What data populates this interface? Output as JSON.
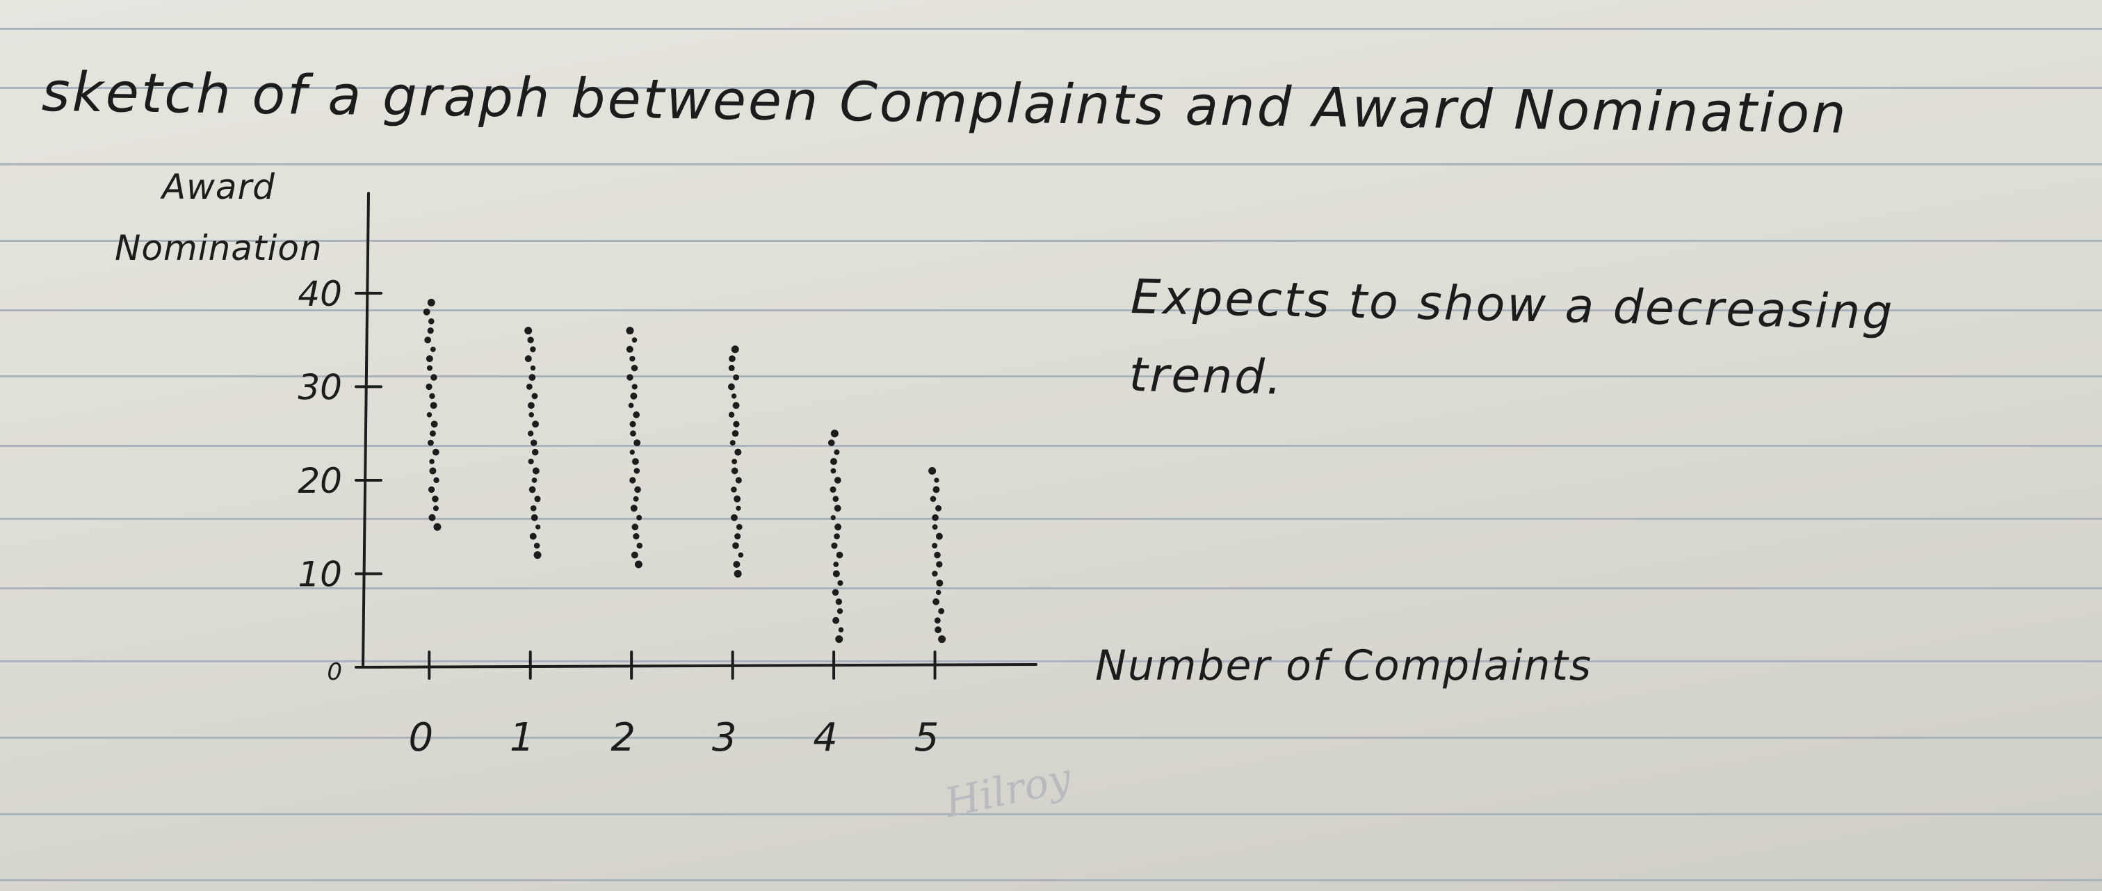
{
  "page": {
    "title": "sketch of a graph between Complaints and Award Nomination",
    "note_lines": [
      "Expects to show a decreasing",
      "trend."
    ],
    "watermark": "Hilroy"
  },
  "chart_data": {
    "type": "scatter",
    "title": "sketch of a graph between Complaints and Award Nomination",
    "xlabel": "Number of Complaints",
    "ylabel_lines": [
      "Award",
      "Nomination"
    ],
    "x_ticks": [
      0,
      1,
      2,
      3,
      4,
      5
    ],
    "y_ticks": [
      {
        "value": 0,
        "label": "0"
      },
      {
        "value": 10,
        "label": "10"
      },
      {
        "value": 20,
        "label": "20"
      },
      {
        "value": 30,
        "label": "30"
      },
      {
        "value": 40,
        "label": "40"
      }
    ],
    "xlim": [
      -0.6,
      6
    ],
    "ylim": [
      0,
      42
    ],
    "grid": false,
    "series": [
      {
        "x": 0,
        "y_range": [
          15,
          39
        ]
      },
      {
        "x": 1,
        "y_range": [
          12,
          36
        ]
      },
      {
        "x": 2,
        "y_range": [
          11,
          36
        ]
      },
      {
        "x": 3,
        "y_range": [
          10,
          34
        ]
      },
      {
        "x": 4,
        "y_range": [
          3,
          25
        ]
      },
      {
        "x": 5,
        "y_range": [
          3,
          21
        ]
      }
    ],
    "colors": {
      "ink": "#1c1c1c",
      "paper": "#e3e2db",
      "rule": "#a9b3bd",
      "watermark": "#b8bac0"
    }
  }
}
